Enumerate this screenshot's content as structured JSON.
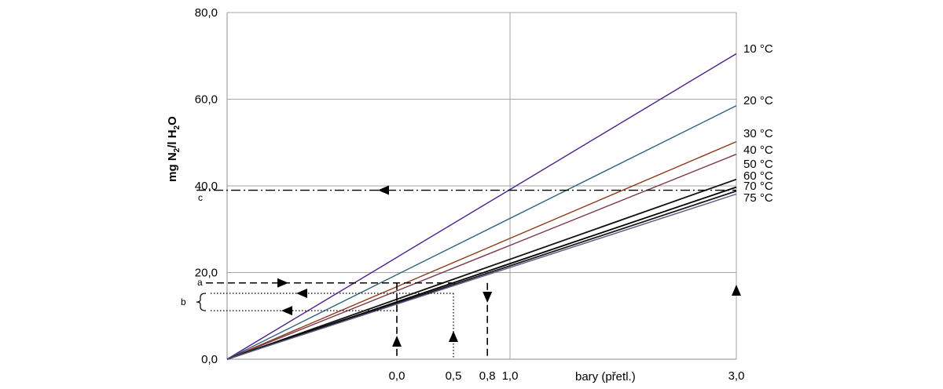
{
  "chart_data": {
    "type": "line",
    "title": "",
    "xlabel": "bary (přetl.)",
    "ylabel": "mg N2/l H2O",
    "ylabel_parts": [
      "mg N",
      "2",
      "/l H",
      "2",
      "O"
    ],
    "xlim": [
      -1.5,
      3.0
    ],
    "ylim": [
      0,
      80
    ],
    "grid": true,
    "x_tick_labels": [
      {
        "x": 0.0,
        "label": "0,0"
      },
      {
        "x": 0.5,
        "label": "0,5"
      },
      {
        "x": 0.8,
        "label": "0,8"
      },
      {
        "x": 1.0,
        "label": "1,0"
      },
      {
        "x": 3.0,
        "label": "3,0"
      }
    ],
    "y_ticks": [
      {
        "y": 0,
        "label": "0,0"
      },
      {
        "y": 20,
        "label": "20,0"
      },
      {
        "y": 40,
        "label": "40,0"
      },
      {
        "y": 60,
        "label": "60,0"
      },
      {
        "y": 80,
        "label": "80,0"
      }
    ],
    "x_gridlines": [
      1.0,
      3.0
    ],
    "series": [
      {
        "name": "10 °C",
        "color": "#4b1f8f",
        "x": [
          -1.5,
          3.0
        ],
        "values": [
          0,
          70.5
        ]
      },
      {
        "name": "20 °C",
        "color": "#2f6277",
        "x": [
          -1.5,
          3.0
        ],
        "values": [
          0,
          58.5
        ]
      },
      {
        "name": "30 °C",
        "color": "#8b3a1a",
        "x": [
          -1.5,
          3.0
        ],
        "values": [
          0,
          50.2
        ]
      },
      {
        "name": "40 °C",
        "color": "#7a3a4a",
        "x": [
          -1.5,
          3.0
        ],
        "values": [
          0,
          47.3
        ]
      },
      {
        "name": "50 °C",
        "color": "#111111",
        "x": [
          -1.5,
          3.0
        ],
        "values": [
          0,
          41.5
        ]
      },
      {
        "name": "60 °C",
        "color": "#000000",
        "x": [
          -1.5,
          3.0
        ],
        "values": [
          0,
          39.7
        ]
      },
      {
        "name": "70 °C",
        "color": "#1a1a1a",
        "x": [
          -1.5,
          3.0
        ],
        "values": [
          0,
          38.8
        ]
      },
      {
        "name": "75 °C",
        "color": "#5a5a8a",
        "x": [
          -1.5,
          3.0
        ],
        "values": [
          0,
          38.1
        ]
      }
    ],
    "annotations": [
      {
        "label": "a",
        "style": "dashed",
        "direction": "right",
        "from_x": 0.0,
        "y": 17.6
      },
      {
        "label": "b",
        "style": "dotted",
        "values_y": [
          15.2,
          11.2
        ],
        "from_x": [
          0.5,
          0.0
        ]
      },
      {
        "label": "c",
        "style": "dashdot",
        "direction": "left",
        "from_x": 3.0,
        "y": 39.0
      }
    ]
  }
}
